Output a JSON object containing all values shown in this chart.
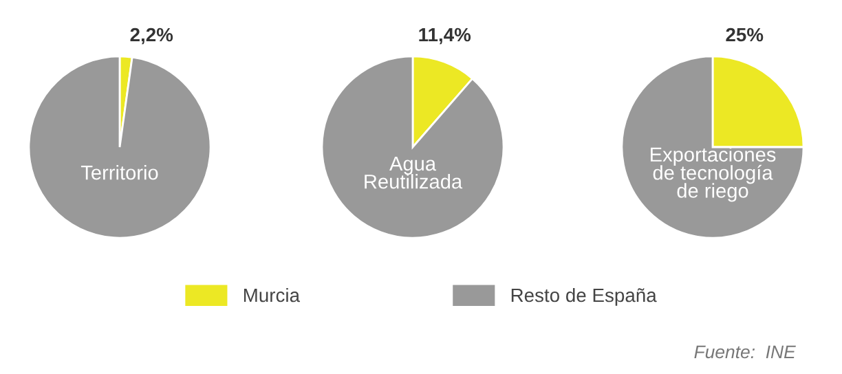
{
  "chart_data": [
    {
      "type": "pie",
      "title": "Territorio",
      "categories": [
        "Murcia",
        "Resto de España"
      ],
      "values": [
        2.2,
        97.8
      ],
      "colors": [
        "#ece824",
        "#999999"
      ],
      "value_labels": [
        "2,2%",
        null
      ],
      "legend": "bottom"
    },
    {
      "type": "pie",
      "title": "Agua\nReutilizada",
      "categories": [
        null,
        null
      ],
      "values": [
        11.4,
        88.6
      ],
      "colors": [
        "#ece824",
        "#999999"
      ],
      "value_labels": [
        "11,4%",
        null
      ]
    },
    {
      "type": "pie",
      "title": "Exportaciones\nde tecnología\nde riego",
      "categories": [
        null,
        null
      ],
      "values": [
        25,
        75
      ],
      "colors": [
        "#ece824",
        "#999999"
      ],
      "value_labels": [
        "25%",
        null
      ],
      "annotations": [
        "Fuente:  INE"
      ]
    }
  ]
}
